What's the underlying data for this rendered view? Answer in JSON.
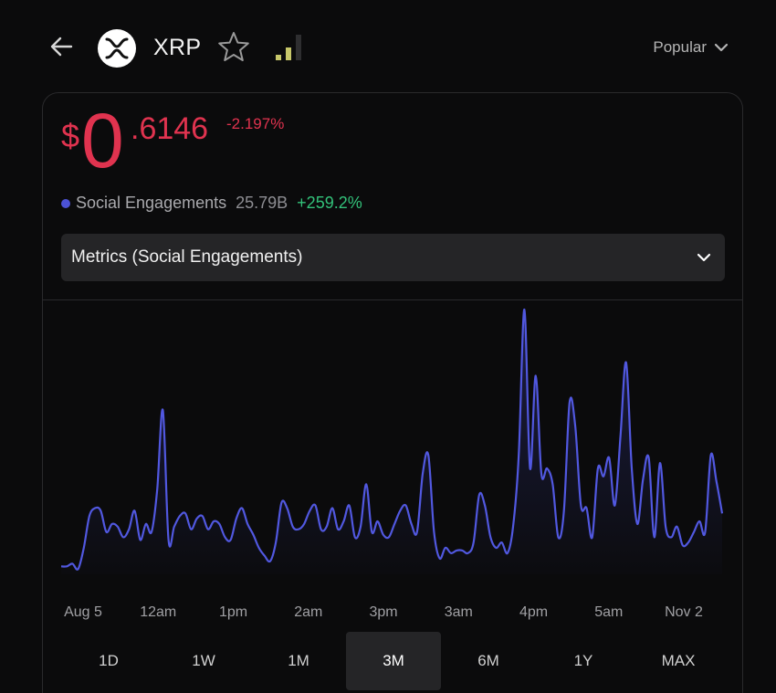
{
  "header": {
    "coin_name": "XRP",
    "logo_icon": "xrp-logo-icon",
    "back_icon": "arrow-left-icon",
    "star_icon": "star-outline-icon",
    "signal_icon": "signal-strength-icon",
    "sort_label": "Popular"
  },
  "price": {
    "currency": "$",
    "integer": "0",
    "decimal": ".6146",
    "change": "-2.197%",
    "color": "#e0334f"
  },
  "metric": {
    "label": "Social Engagements",
    "value": "25.79B",
    "change": "+259.2%",
    "dot_color": "#4c52d6",
    "change_color": "#33c27a"
  },
  "metric_select": {
    "value": "Metrics (Social Engagements)"
  },
  "chart_data": {
    "type": "area",
    "x_tick_labels": [
      "Aug 5",
      "12am",
      "1pm",
      "2am",
      "3pm",
      "3am",
      "4pm",
      "5am",
      "Nov 2"
    ],
    "series": [
      {
        "color": "#5158e0",
        "values": [
          3,
          3,
          4,
          2,
          10,
          22,
          25,
          24,
          16,
          19,
          18,
          14,
          17,
          24,
          13,
          19,
          16,
          32,
          62,
          13,
          18,
          22,
          23,
          17,
          21,
          22,
          17,
          20,
          19,
          14,
          13,
          21,
          25,
          19,
          15,
          10,
          7,
          5,
          12,
          27,
          25,
          18,
          17,
          19,
          24,
          26,
          17,
          18,
          25,
          17,
          20,
          26,
          14,
          18,
          34,
          16,
          20,
          15,
          14,
          19,
          24,
          26,
          19,
          16,
          38,
          45,
          16,
          6,
          10,
          8,
          9,
          9,
          8,
          12,
          30,
          26,
          14,
          10,
          12,
          8,
          18,
          45,
          100,
          40,
          75,
          38,
          40,
          34,
          14,
          24,
          65,
          56,
          26,
          25,
          14,
          40,
          37,
          44,
          26,
          52,
          80,
          40,
          19,
          36,
          44,
          14,
          42,
          18,
          14,
          18,
          11,
          12,
          16,
          20,
          16,
          45,
          35,
          23
        ]
      }
    ],
    "ylim": [
      0,
      100
    ],
    "grid": false,
    "legend": "none"
  },
  "ranges": {
    "items": [
      "1D",
      "1W",
      "1M",
      "3M",
      "6M",
      "1Y",
      "MAX"
    ],
    "active": "3M"
  }
}
